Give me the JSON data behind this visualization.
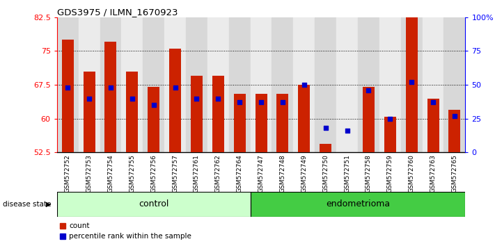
{
  "title": "GDS3975 / ILMN_1670923",
  "samples": [
    "GSM572752",
    "GSM572753",
    "GSM572754",
    "GSM572755",
    "GSM572756",
    "GSM572757",
    "GSM572761",
    "GSM572762",
    "GSM572764",
    "GSM572747",
    "GSM572748",
    "GSM572749",
    "GSM572750",
    "GSM572751",
    "GSM572758",
    "GSM572759",
    "GSM572760",
    "GSM572763",
    "GSM572765"
  ],
  "count_values": [
    77.5,
    70.5,
    77.0,
    70.5,
    67.0,
    75.5,
    69.5,
    69.5,
    65.5,
    65.5,
    65.5,
    67.5,
    54.5,
    52.5,
    67.0,
    60.5,
    82.5,
    64.5,
    62.0
  ],
  "percentile_values": [
    48,
    40,
    48,
    40,
    35,
    48,
    40,
    40,
    37,
    37,
    37,
    50,
    18,
    16,
    46,
    25,
    52,
    37,
    27
  ],
  "groups": [
    "control",
    "control",
    "control",
    "control",
    "control",
    "control",
    "control",
    "control",
    "control",
    "endometrioma",
    "endometrioma",
    "endometrioma",
    "endometrioma",
    "endometrioma",
    "endometrioma",
    "endometrioma",
    "endometrioma",
    "endometrioma",
    "endometrioma"
  ],
  "n_control": 9,
  "n_endo": 10,
  "ymin": 52.5,
  "ymax": 82.5,
  "yticks": [
    52.5,
    60.0,
    67.5,
    75.0,
    82.5
  ],
  "ytick_labels": [
    "52.5",
    "60",
    "67.5",
    "75",
    "82.5"
  ],
  "y2min": 0,
  "y2max": 100,
  "y2ticks": [
    0,
    25,
    50,
    75,
    100
  ],
  "y2tick_labels": [
    "0",
    "25",
    "50",
    "75",
    "100%"
  ],
  "bar_color": "#cc2200",
  "dot_color": "#0000cc",
  "control_color": "#ccffcc",
  "endometrioma_color": "#44cc44",
  "bar_width": 0.55,
  "dot_size": 16,
  "grid_lines": [
    60.0,
    67.5,
    75.0
  ]
}
